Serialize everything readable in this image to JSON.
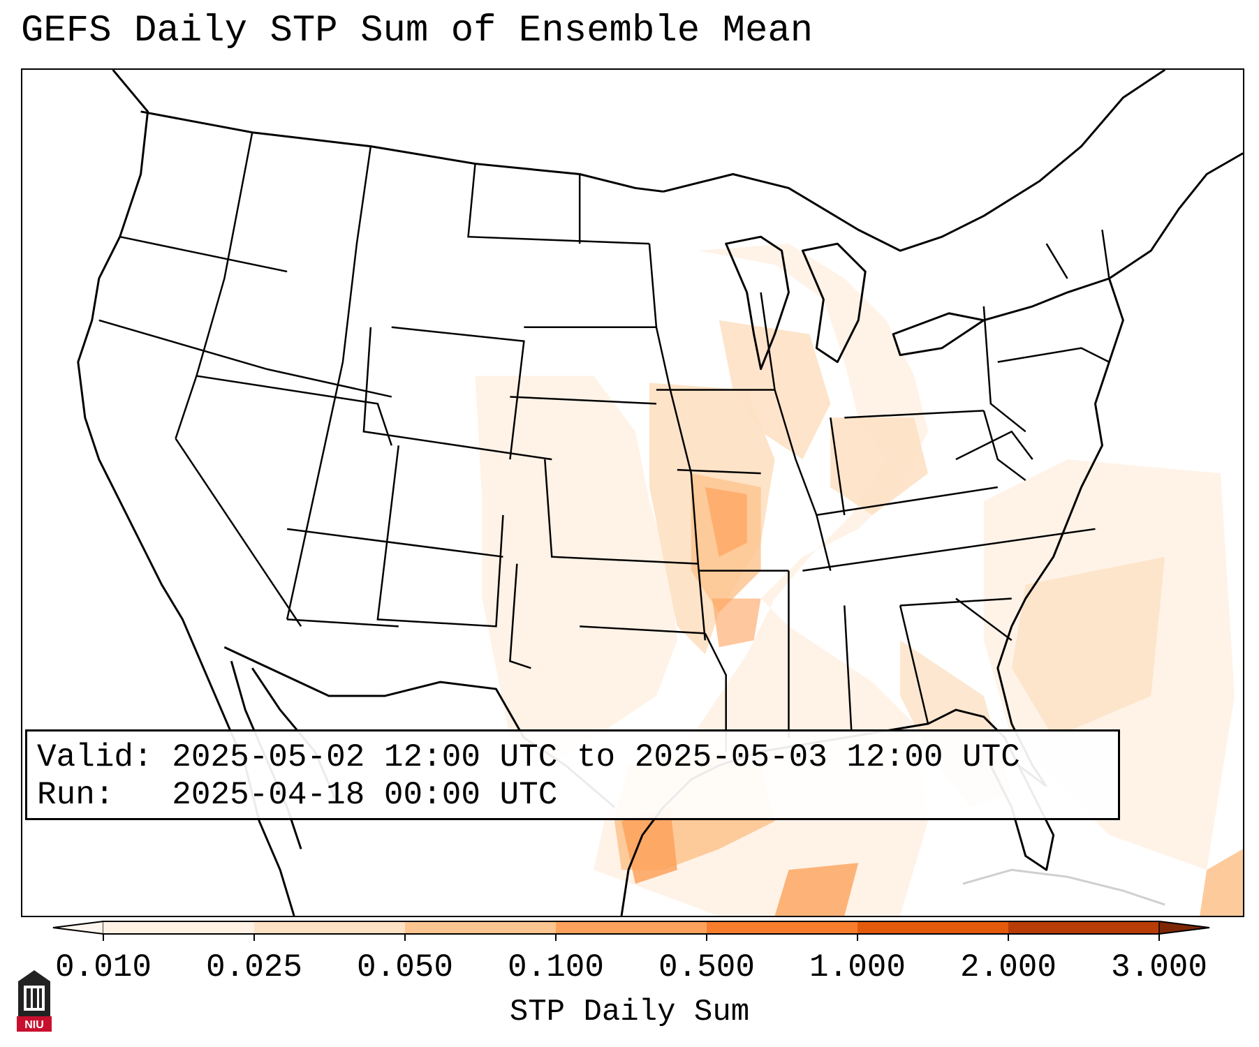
{
  "title": "GEFS Daily STP Sum of Ensemble Mean",
  "info": {
    "valid_label": "Valid:",
    "valid_value": "2025-05-02 12:00 UTC to 2025-05-03 12:00 UTC",
    "run_label": "Run:",
    "run_value": "2025-04-18 00:00 UTC"
  },
  "colorbar": {
    "label": "STP Daily Sum",
    "ticks": [
      "0.010",
      "0.025",
      "0.050",
      "0.100",
      "0.500",
      "1.000",
      "2.000",
      "3.000"
    ],
    "colors": [
      "#fff1e4",
      "#fde1c4",
      "#fdc590",
      "#fda25c",
      "#f87d2c",
      "#e45a0b",
      "#b83c05"
    ],
    "extend": "both"
  },
  "logo": {
    "text": "NIU",
    "color": "#c8102e"
  }
}
